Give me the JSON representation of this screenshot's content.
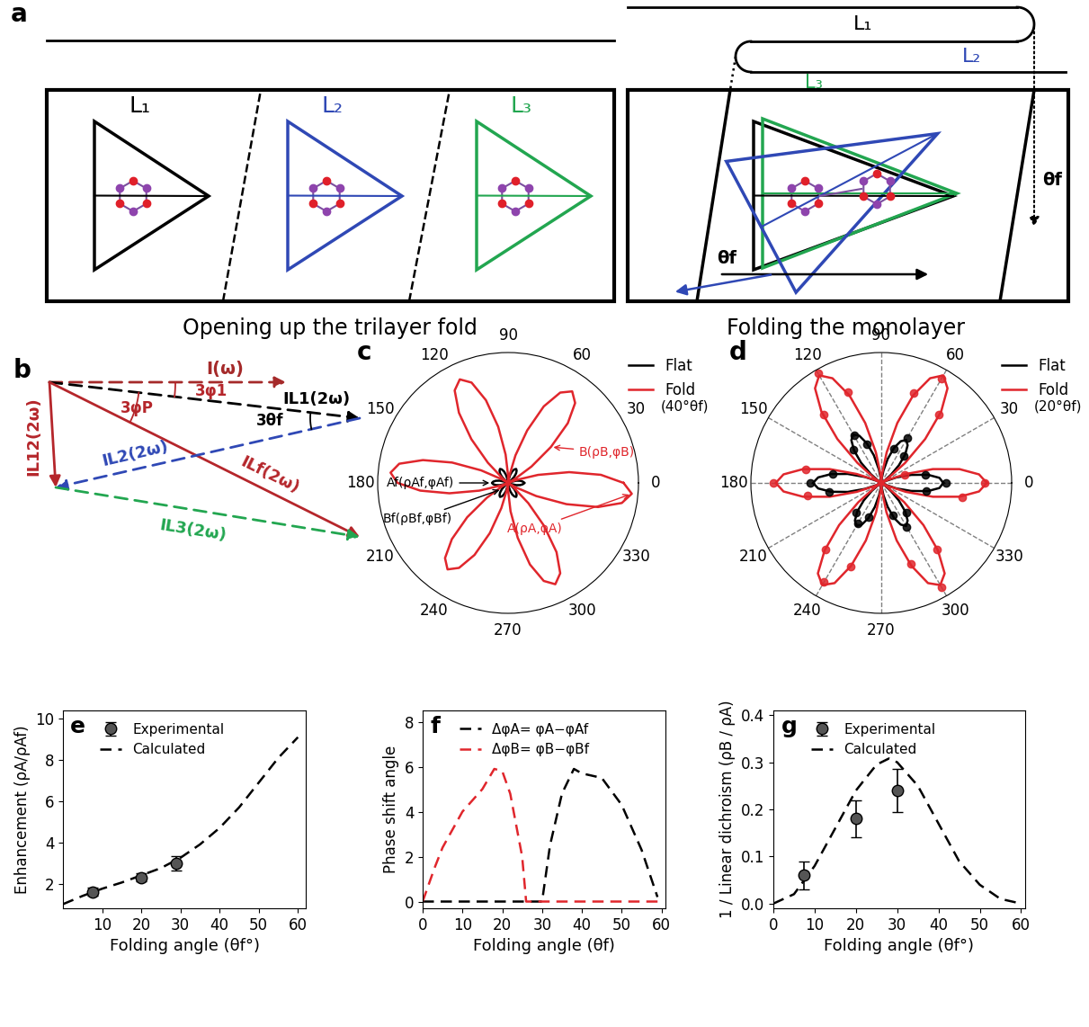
{
  "panel_a": {
    "label": "a",
    "layers": [
      "L₁",
      "L₂",
      "L₃"
    ],
    "left_caption": "Opening up the trilayer fold",
    "right_caption": "Folding the monolayer",
    "angle_label": "θf"
  },
  "panel_b": {
    "label": "b",
    "vectors": {
      "pump": "I(ω)",
      "L1": "IL1(2ω)",
      "L2": "IL2(2ω)",
      "L3": "IL3(2ω)",
      "L12": "IL12(2ω)",
      "Lf": "ILf(2ω)"
    },
    "angles": {
      "phi1": "3φ1",
      "phiP": "3φP",
      "theta": "3θf"
    }
  },
  "chart_data": [
    {
      "type": "polar",
      "title": "c",
      "subtitle": "(40°θf)",
      "grid": false,
      "legend": "upper right",
      "tick_labels": "x",
      "xlim": [
        0,
        360
      ],
      "xticks": [
        0,
        30,
        60,
        90,
        120,
        150,
        180,
        210,
        240,
        270,
        300,
        330
      ],
      "ylim": [
        0,
        1.05
      ],
      "yticks": [],
      "series": [
        {
          "name": "Flat",
          "color": "black",
          "type": "line",
          "line_style": "solid",
          "x": [
            0,
            5,
            10,
            15,
            20,
            25,
            30,
            35,
            40,
            45,
            50,
            55,
            60,
            65,
            70,
            75,
            80,
            85,
            90,
            95,
            100,
            105,
            110,
            115,
            120,
            125,
            130,
            135,
            140,
            145,
            150,
            155,
            160,
            165,
            170,
            175,
            180,
            185,
            190,
            195,
            200,
            205,
            210,
            215,
            220,
            225,
            230,
            235,
            240,
            245,
            250,
            255,
            260,
            265,
            270,
            275,
            280,
            285,
            290,
            295,
            300,
            305,
            310,
            315,
            320,
            325,
            330,
            335,
            340,
            345,
            350,
            355,
            360
          ],
          "values": [
            0.13,
            0.12,
            0.1,
            0.07,
            0.03,
            0.01,
            0,
            0.01,
            0.03,
            0.07,
            0.1,
            0.12,
            0.13,
            0.12,
            0.1,
            0.07,
            0.03,
            0.01,
            0,
            0.01,
            0.03,
            0.07,
            0.1,
            0.12,
            0.13,
            0.12,
            0.1,
            0.07,
            0.03,
            0.01,
            0,
            0.01,
            0.03,
            0.07,
            0.1,
            0.12,
            0.13,
            0.12,
            0.1,
            0.07,
            0.03,
            0.01,
            0,
            0.01,
            0.03,
            0.07,
            0.1,
            0.12,
            0.13,
            0.12,
            0.1,
            0.07,
            0.03,
            0.01,
            0,
            0.01,
            0.03,
            0.07,
            0.1,
            0.12,
            0.13,
            0.12,
            0.1,
            0.07,
            0.03,
            0.01,
            0,
            0.01,
            0.03,
            0.07,
            0.1,
            0.12,
            0.13
          ]
        },
        {
          "name": "Fold",
          "color": "#e0262c",
          "type": "line",
          "line_style": "solid",
          "x": [
            0,
            5,
            10,
            15,
            20,
            25,
            30,
            35,
            40,
            45,
            50,
            55,
            60,
            65,
            70,
            75,
            80,
            85,
            90,
            95,
            100,
            105,
            110,
            115,
            120,
            125,
            130,
            135,
            140,
            145,
            150,
            155,
            160,
            165,
            170,
            175,
            180,
            185,
            190,
            195,
            200,
            205,
            210,
            215,
            220,
            225,
            230,
            235,
            240,
            245,
            250,
            255,
            260,
            265,
            270,
            275,
            280,
            285,
            290,
            295,
            300,
            305,
            310,
            315,
            320,
            325,
            330,
            335,
            340,
            345,
            350,
            355,
            360
          ],
          "values": [
            0.93,
            0.75,
            0.5,
            0.25,
            0.07,
            0,
            0.06,
            0.23,
            0.45,
            0.68,
            0.84,
            0.9,
            0.84,
            0.68,
            0.45,
            0.23,
            0.06,
            0,
            0.06,
            0.23,
            0.46,
            0.69,
            0.86,
            0.92,
            0.86,
            0.69,
            0.46,
            0.23,
            0.06,
            0,
            0.06,
            0.24,
            0.48,
            0.71,
            0.89,
            0.95,
            0.89,
            0.71,
            0.48,
            0.24,
            0.06,
            0,
            0.06,
            0.21,
            0.43,
            0.64,
            0.79,
            0.85,
            0.79,
            0.64,
            0.43,
            0.21,
            0.06,
            0,
            0.06,
            0.23,
            0.45,
            0.68,
            0.84,
            0.9,
            0.84,
            0.68,
            0.45,
            0.23,
            0.06,
            0,
            0.07,
            0.25,
            0.5,
            0.75,
            0.93,
            1.0,
            0.93
          ]
        }
      ],
      "annotations": [
        {
          "text": "A(ρA,φA)",
          "x": 355,
          "y": 1.0,
          "color": "#e0262c"
        },
        {
          "text": "B(ρB,φB)",
          "x": 40,
          "y": 0.45,
          "color": "#e0262c"
        },
        {
          "text": "Af(ρAf,φAf)",
          "x": 180,
          "y": 0.13,
          "color": "black"
        },
        {
          "text": "Bf(ρBf,φBf)",
          "x": 225,
          "y": 0.07,
          "color": "black"
        }
      ]
    },
    {
      "type": "polar",
      "title": "d",
      "subtitle": "(20°θf)",
      "grid": true,
      "legend": "upper right",
      "tick_labels": "x",
      "xlim": [
        0,
        360
      ],
      "xticks": [
        0,
        30,
        60,
        90,
        120,
        150,
        180,
        210,
        240,
        270,
        300,
        330
      ],
      "ylim": [
        0,
        1.05
      ],
      "yticks": [],
      "series": [
        {
          "name": "Flat",
          "color": "black",
          "type": "line",
          "line_style": "solid",
          "x": [
            0,
            5,
            10,
            15,
            20,
            25,
            30,
            35,
            40,
            45,
            50,
            55,
            60,
            65,
            70,
            75,
            80,
            85,
            90,
            95,
            100,
            105,
            110,
            115,
            120,
            125,
            130,
            135,
            140,
            145,
            150,
            155,
            160,
            165,
            170,
            175,
            180,
            185,
            190,
            195,
            200,
            205,
            210,
            215,
            220,
            225,
            230,
            235,
            240,
            245,
            250,
            255,
            260,
            265,
            270,
            275,
            280,
            285,
            290,
            295,
            300,
            305,
            310,
            315,
            320,
            325,
            330,
            335,
            340,
            345,
            350,
            355,
            360
          ],
          "values": [
            0.5,
            0.47,
            0.38,
            0.25,
            0.13,
            0.03,
            0,
            0.03,
            0.1,
            0.2,
            0.3,
            0.37,
            0.4,
            0.37,
            0.3,
            0.2,
            0.1,
            0.03,
            0,
            0.03,
            0.11,
            0.23,
            0.34,
            0.42,
            0.45,
            0.42,
            0.34,
            0.23,
            0.11,
            0.03,
            0,
            0.04,
            0.14,
            0.28,
            0.41,
            0.51,
            0.55,
            0.51,
            0.41,
            0.28,
            0.14,
            0.04,
            0,
            0.03,
            0.1,
            0.2,
            0.3,
            0.37,
            0.4,
            0.37,
            0.3,
            0.2,
            0.1,
            0.03,
            0,
            0.03,
            0.1,
            0.2,
            0.3,
            0.37,
            0.4,
            0.37,
            0.3,
            0.2,
            0.1,
            0.03,
            0,
            0.03,
            0.13,
            0.25,
            0.38,
            0.47,
            0.5
          ]
        },
        {
          "name": "Fold",
          "color": "#e0262c",
          "type": "line",
          "line_style": "solid",
          "x": [
            0,
            5,
            10,
            15,
            20,
            25,
            30,
            35,
            40,
            45,
            50,
            55,
            60,
            65,
            70,
            75,
            80,
            85,
            90,
            95,
            100,
            105,
            110,
            115,
            120,
            125,
            130,
            135,
            140,
            145,
            150,
            155,
            160,
            165,
            170,
            175,
            180,
            185,
            190,
            195,
            200,
            205,
            210,
            215,
            220,
            225,
            230,
            235,
            240,
            245,
            250,
            255,
            260,
            265,
            270,
            275,
            280,
            285,
            290,
            295,
            300,
            305,
            310,
            315,
            320,
            325,
            330,
            335,
            340,
            345,
            350,
            355,
            360
          ],
          "values": [
            0.85,
            0.79,
            0.64,
            0.43,
            0.21,
            0.06,
            0,
            0.07,
            0.25,
            0.5,
            0.75,
            0.93,
            1.0,
            0.93,
            0.75,
            0.5,
            0.25,
            0.07,
            0,
            0.07,
            0.25,
            0.5,
            0.75,
            0.93,
            1.0,
            0.93,
            0.75,
            0.5,
            0.25,
            0.07,
            0,
            0.06,
            0.21,
            0.43,
            0.64,
            0.79,
            0.85,
            0.79,
            0.64,
            0.43,
            0.21,
            0.06,
            0,
            0.06,
            0.24,
            0.48,
            0.71,
            0.89,
            0.95,
            0.89,
            0.71,
            0.48,
            0.24,
            0.06,
            0,
            0.06,
            0.24,
            0.48,
            0.71,
            0.89,
            0.95,
            0.89,
            0.71,
            0.48,
            0.24,
            0.06,
            0,
            0.06,
            0.21,
            0.43,
            0.64,
            0.79,
            0.85
          ]
        },
        {
          "color": "black",
          "type": "scatter",
          "marker": "o",
          "x": [
            0,
            10,
            50,
            60,
            70,
            110,
            120,
            130,
            170,
            180,
            190,
            230,
            240,
            250,
            290,
            300,
            310,
            350
          ],
          "values": [
            0.52,
            0.36,
            0.28,
            0.42,
            0.29,
            0.33,
            0.44,
            0.35,
            0.4,
            0.57,
            0.43,
            0.31,
            0.38,
            0.29,
            0.28,
            0.41,
            0.31,
            0.37
          ]
        },
        {
          "color": "#e0262c",
          "type": "scatter",
          "marker": "o",
          "x": [
            0,
            20,
            50,
            60,
            70,
            110,
            120,
            130,
            170,
            180,
            190,
            230,
            240,
            250,
            290,
            300,
            310,
            350
          ],
          "values": [
            0.83,
            0.2,
            0.72,
            0.97,
            0.77,
            0.78,
            1.02,
            0.72,
            0.62,
            0.87,
            0.6,
            0.7,
            0.92,
            0.72,
            0.69,
            0.97,
            0.7,
            0.66
          ]
        }
      ]
    },
    {
      "type": "line",
      "title": "e",
      "xlabel": "Folding angle (θf°)",
      "ylabel": "Enhancement (ρA/ρAf)",
      "xlim": [
        0,
        62
      ],
      "ylim": [
        0.8,
        10.4
      ],
      "xticks": [
        10,
        20,
        30,
        40,
        50,
        60
      ],
      "yticks": [
        2,
        4,
        6,
        8,
        10
      ],
      "grid": false,
      "legend": "upper left",
      "series": [
        {
          "name": "Experimental",
          "color": "black",
          "type": "scatter",
          "marker": "o",
          "x": [
            7.5,
            20,
            29
          ],
          "values": [
            1.6,
            2.3,
            3.0
          ],
          "error": [
            0.2,
            0.2,
            0.35
          ]
        },
        {
          "name": "Calculated",
          "color": "black",
          "type": "line",
          "line_style": "dashed",
          "x": [
            0,
            5,
            10,
            15,
            20,
            25,
            30,
            35,
            40,
            45,
            50,
            55,
            60
          ],
          "values": [
            1.0,
            1.4,
            1.75,
            2.05,
            2.4,
            2.75,
            3.25,
            3.9,
            4.7,
            5.7,
            6.9,
            8.1,
            9.1
          ]
        }
      ]
    },
    {
      "type": "line",
      "title": "f",
      "xlabel": "Folding angle (θf)",
      "ylabel": "Phase shift angle",
      "xlim": [
        0,
        61
      ],
      "ylim": [
        -0.3,
        8.5
      ],
      "xticks": [
        0,
        10,
        20,
        30,
        40,
        50,
        60
      ],
      "yticks": [
        0,
        2,
        4,
        6,
        8
      ],
      "grid": false,
      "legend": "upper left",
      "series": [
        {
          "name": "ΔφA= φA−φAf",
          "color": "black",
          "type": "line",
          "line_style": "dashed",
          "x": [
            0,
            5,
            10,
            15,
            20,
            25,
            30,
            32,
            35,
            38,
            40,
            45,
            50,
            55,
            59
          ],
          "values": [
            0,
            0,
            0,
            0,
            0,
            0,
            0,
            2.5,
            4.8,
            5.9,
            5.7,
            5.5,
            4.3,
            2.3,
            0.2
          ]
        },
        {
          "name": "ΔφB= φB−φBf",
          "color": "#e0262c",
          "type": "line",
          "line_style": "dashed",
          "x": [
            0,
            3,
            5,
            10,
            15,
            18,
            20,
            22,
            25,
            26,
            30,
            40,
            50,
            60
          ],
          "values": [
            0,
            1.5,
            2.4,
            4.0,
            5.0,
            5.9,
            5.8,
            4.8,
            2.0,
            0,
            0,
            0,
            0,
            0
          ]
        }
      ]
    },
    {
      "type": "line",
      "title": "g",
      "xlabel": "Folding angle (θf°)",
      "ylabel": "1 / Linear dichroism (ρB / ρA)",
      "xlim": [
        0,
        61
      ],
      "ylim": [
        -0.01,
        0.41
      ],
      "xticks": [
        0,
        10,
        20,
        30,
        40,
        50,
        60
      ],
      "yticks": [
        0.0,
        0.1,
        0.2,
        0.3,
        0.4
      ],
      "grid": false,
      "legend": "upper left",
      "series": [
        {
          "name": "Experimental",
          "color": "black",
          "type": "scatter",
          "marker": "o",
          "x": [
            7.5,
            20,
            30
          ],
          "values": [
            0.06,
            0.18,
            0.24
          ],
          "error": [
            0.03,
            0.04,
            0.045
          ]
        },
        {
          "name": "Calculated",
          "color": "black",
          "type": "line",
          "line_style": "dashed",
          "x": [
            0,
            5,
            10,
            15,
            20,
            25,
            28,
            30,
            35,
            40,
            45,
            50,
            55,
            60
          ],
          "values": [
            0.0,
            0.02,
            0.08,
            0.16,
            0.24,
            0.295,
            0.308,
            0.3,
            0.25,
            0.17,
            0.09,
            0.04,
            0.01,
            0.0
          ]
        }
      ]
    }
  ]
}
